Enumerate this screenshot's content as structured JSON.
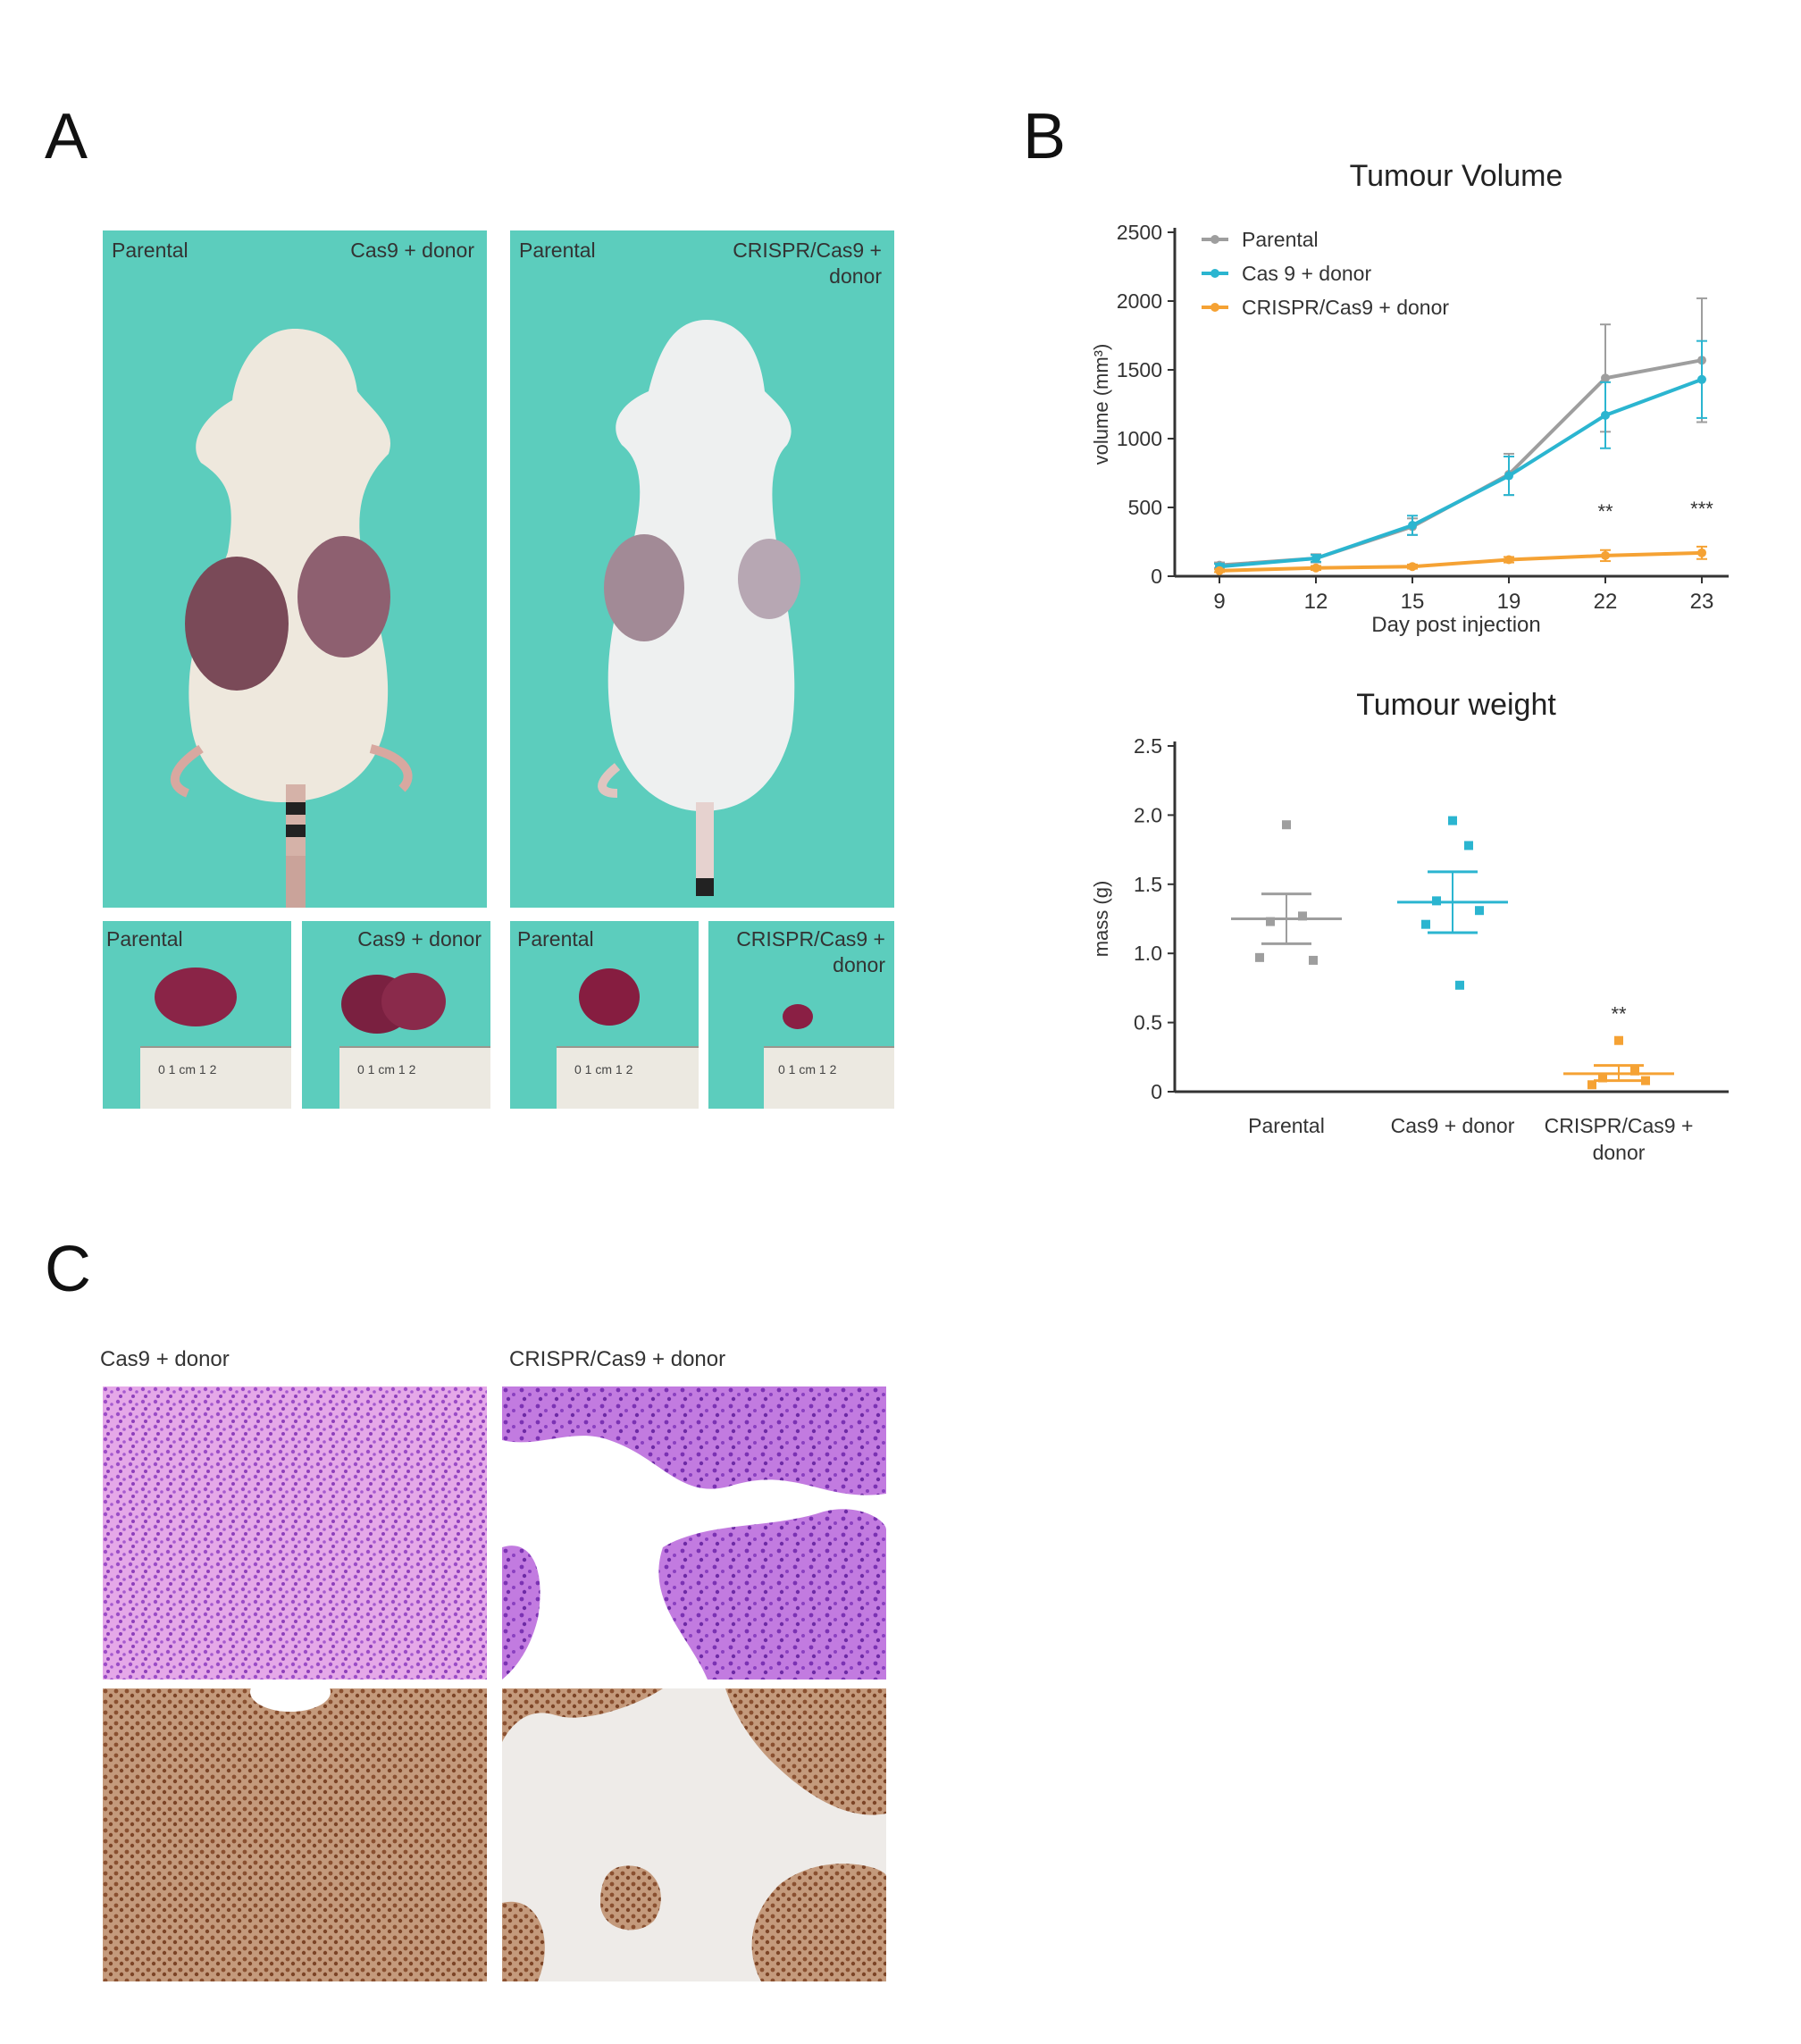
{
  "panels": {
    "a": "A",
    "b": "B",
    "c": "C"
  },
  "panel_a": {
    "mouse_left": {
      "left_label": "Parental",
      "right_label": "Cas9 + donor"
    },
    "mouse_right": {
      "left_label": "Parental",
      "right_label": "CRISPR/Cas9 +\ndonor"
    },
    "tumours": [
      {
        "label": "Parental",
        "ruler": "0 1 cm 1   2"
      },
      {
        "label": "Cas9 + donor",
        "ruler": "0 1 cm 1   2"
      },
      {
        "label": "Parental",
        "ruler": "0 1 cm 1   2"
      },
      {
        "label": "CRISPR/Cas9 +\ndonor",
        "ruler": "0 1 cm 1   2"
      }
    ]
  },
  "panel_c": {
    "left_label": "Cas9 + donor",
    "right_label": "CRISPR/Cas9 + donor"
  },
  "colors": {
    "parental": "#9e9e9e",
    "cas9": "#2bb5d0",
    "crispr": "#f5a234"
  },
  "chart_data": [
    {
      "type": "line",
      "title": "Tumour Volume",
      "xlabel": "Day post injection",
      "ylabel": "volume (mm³)",
      "categories": [
        "9",
        "12",
        "15",
        "19",
        "22",
        "23"
      ],
      "ylim": [
        0,
        2500
      ],
      "yticks": [
        "0",
        "500",
        "1000",
        "1500",
        "2000",
        "2500"
      ],
      "legend_position": "top-left",
      "series": [
        {
          "name": "Parental",
          "color": "#9e9e9e",
          "values": [
            80,
            130,
            360,
            740,
            1440,
            1570
          ],
          "err": [
            20,
            30,
            60,
            150,
            390,
            450
          ]
        },
        {
          "name": "Cas 9 + donor",
          "color": "#2bb5d0",
          "values": [
            70,
            130,
            370,
            730,
            1170,
            1430
          ],
          "err": [
            20,
            25,
            70,
            140,
            240,
            280
          ]
        },
        {
          "name": "CRISPR/Cas9 + donor",
          "color": "#f5a234",
          "values": [
            40,
            60,
            70,
            120,
            150,
            170
          ],
          "err": [
            10,
            15,
            15,
            20,
            40,
            45
          ]
        }
      ],
      "annotations": [
        {
          "category": "22",
          "text": "**"
        },
        {
          "category": "23",
          "text": "***"
        }
      ]
    },
    {
      "type": "scatter",
      "title": "Tumour weight",
      "ylabel": "mass (g)",
      "categories": [
        "Parental",
        "Cas9 + donor",
        "CRISPR/Cas9 +\ndonor"
      ],
      "ylim": [
        0,
        2.5
      ],
      "yticks": [
        "0",
        "0.5",
        "1.0",
        "1.5",
        "2.0",
        "2.5"
      ],
      "groups": [
        {
          "name": "Parental",
          "color": "#9e9e9e",
          "points": [
            1.93,
            1.27,
            1.23,
            0.95,
            0.97
          ],
          "mean": 1.25,
          "sem": [
            1.07,
            1.43
          ]
        },
        {
          "name": "Cas9 + donor",
          "color": "#2bb5d0",
          "points": [
            1.96,
            1.78,
            1.38,
            1.31,
            1.21,
            0.77
          ],
          "mean": 1.37,
          "sem": [
            1.15,
            1.59
          ]
        },
        {
          "name": "CRISPR/Cas9 + donor",
          "color": "#f5a234",
          "points": [
            0.37,
            0.15,
            0.1,
            0.08,
            0.05
          ],
          "mean": 0.13,
          "sem": [
            0.08,
            0.19
          ]
        }
      ],
      "annotations": [
        {
          "category": "CRISPR/Cas9 +\ndonor",
          "text": "**"
        }
      ]
    }
  ]
}
